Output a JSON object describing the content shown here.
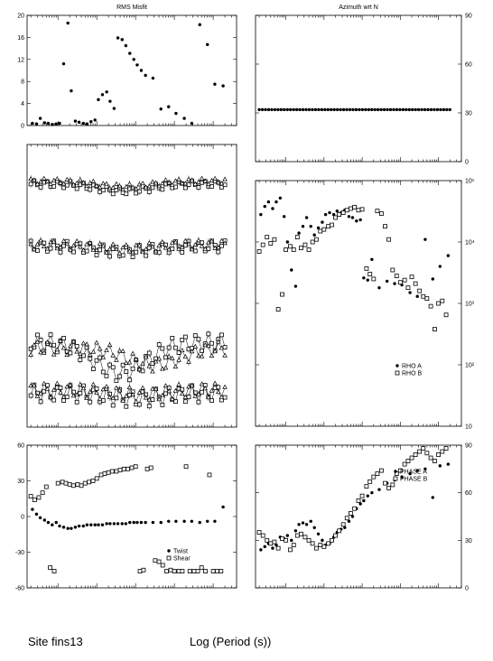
{
  "footer": {
    "site_label": "Site fins13",
    "x_label": "Log (Period (s))"
  },
  "chart_data": [
    {
      "id": "rms",
      "type": "scatter",
      "title": "RMS Misfit",
      "xscale": "log",
      "xlim": [
        0.0016,
        400
      ],
      "ylim": [
        0,
        20
      ],
      "yticks": [
        0,
        4,
        8,
        12,
        16,
        20
      ],
      "ytick_labels": [
        "0",
        "4",
        "8",
        "12",
        "16",
        "20"
      ],
      "yaxis_side": "left",
      "series": [
        {
          "marker": "dot",
          "x": [
            0.0022,
            0.0028,
            0.0035,
            0.0045,
            0.0056,
            0.0071,
            0.009,
            0.011,
            0.014,
            0.018,
            0.022,
            0.028,
            0.035,
            0.045,
            0.056,
            0.071,
            0.09,
            0.11,
            0.14,
            0.18,
            0.22,
            0.28,
            0.35,
            0.45,
            0.56,
            0.71,
            0.9,
            1.1,
            1.4,
            1.8,
            2.8,
            4.5,
            7.1,
            11,
            18,
            28,
            45,
            71,
            110,
            180
          ],
          "y": [
            0.4,
            0.3,
            1.3,
            0.5,
            0.4,
            0.2,
            0.3,
            0.4,
            11.2,
            18.6,
            6.3,
            0.8,
            0.6,
            0.4,
            0.3,
            0.7,
            1.0,
            4.7,
            5.6,
            6.1,
            4.4,
            3.1,
            15.9,
            15.6,
            14.5,
            13.1,
            12.0,
            11.0,
            10.0,
            9.1,
            8.6,
            3.0,
            3.4,
            2.2,
            1.3,
            0.4,
            18.3,
            14.7,
            7.5,
            7.2
          ]
        }
      ]
    },
    {
      "id": "azimuth",
      "type": "scatter",
      "title": "Azimuth wrt N",
      "xscale": "log",
      "xlim": [
        0.0016,
        400
      ],
      "ylim": [
        0,
        90
      ],
      "yticks": [
        0,
        30,
        60,
        90
      ],
      "ytick_labels": [
        "0",
        "30",
        "60",
        "90"
      ],
      "yaxis_side": "right",
      "series": [
        {
          "marker": "dot",
          "constant_y": 32,
          "x_range": [
            0.002,
            200
          ],
          "count": 62
        }
      ]
    },
    {
      "id": "curves",
      "type": "line",
      "xscale": "log",
      "xlim": [
        0.0016,
        400
      ],
      "ylim": [
        0,
        100
      ],
      "series": [
        {
          "marker": "open-square",
          "base": 86,
          "amp": 1.2,
          "dip_at": 0.5,
          "dip": 2.5
        },
        {
          "marker": "triangle",
          "base": 87,
          "amp": 1.0,
          "dip_at": 0.5,
          "dip": 2.0
        },
        {
          "marker": "open-square",
          "base": 64,
          "amp": 2.0,
          "dip_at": 0.5,
          "dip": 2.0
        },
        {
          "marker": "triangle",
          "base": 64.5,
          "amp": 1.6,
          "dip_at": 0.5,
          "dip": 1.5
        },
        {
          "marker": "open-square",
          "base": 30,
          "amp": 3.0,
          "dip_at": 0.4,
          "dip": 11
        },
        {
          "marker": "triangle",
          "base": 28,
          "amp": 2.5,
          "dip_at": 3.0,
          "dip": 6
        },
        {
          "marker": "open-square",
          "base": 12,
          "amp": 3.0,
          "dip_at": 1.0,
          "dip": 2
        },
        {
          "marker": "triangle",
          "base": 13,
          "amp": 2.5,
          "dip_at": 1.0,
          "dip": 1.5
        }
      ]
    },
    {
      "id": "rho",
      "type": "scatter",
      "xscale": "log",
      "yscale": "log",
      "xlim": [
        0.0016,
        400
      ],
      "ylim": [
        10,
        100000
      ],
      "yticks": [
        10,
        100,
        1000,
        10000,
        100000
      ],
      "ytick_labels": [
        "10",
        "10²",
        "10³",
        "10⁴",
        "10⁵"
      ],
      "yaxis_side": "right",
      "legend": {
        "position": "lower-right",
        "entries": [
          "RHO A",
          "RHO B"
        ]
      },
      "series": [
        {
          "name": "RHO A",
          "marker": "dot",
          "x": [
            0.0022,
            0.0028,
            0.0035,
            0.0045,
            0.0056,
            0.0071,
            0.009,
            0.011,
            0.014,
            0.018,
            0.022,
            0.028,
            0.035,
            0.045,
            0.056,
            0.071,
            0.09,
            0.11,
            0.14,
            0.18,
            0.22,
            0.28,
            0.35,
            0.45,
            0.56,
            0.71,
            0.9,
            1.1,
            1.4,
            1.8,
            2.8,
            4.5,
            7.1,
            11,
            18,
            28,
            45,
            71,
            110,
            180
          ],
          "y": [
            28000,
            38000,
            45000,
            35000,
            45000,
            52000,
            26000,
            10000,
            3500,
            1900,
            14000,
            18000,
            25000,
            18000,
            13000,
            17000,
            21000,
            28000,
            30000,
            28000,
            32000,
            30000,
            33000,
            26000,
            25000,
            22000,
            23000,
            2600,
            2400,
            5200,
            1800,
            2300,
            2100,
            2000,
            1500,
            1300,
            11000,
            2500,
            4000,
            6000
          ]
        },
        {
          "name": "RHO B",
          "marker": "open-square",
          "x": [
            0.002,
            0.0025,
            0.0032,
            0.004,
            0.005,
            0.0063,
            0.008,
            0.01,
            0.013,
            0.016,
            0.02,
            0.025,
            0.032,
            0.04,
            0.05,
            0.063,
            0.08,
            0.1,
            0.13,
            0.16,
            0.2,
            0.25,
            0.32,
            0.4,
            0.5,
            0.63,
            0.8,
            1.0,
            1.3,
            1.6,
            2,
            2.5,
            3.2,
            4,
            5,
            6.3,
            8,
            10,
            13,
            16,
            20,
            25,
            32,
            40,
            50,
            63,
            80,
            100,
            126,
            159
          ],
          "y": [
            7000,
            9000,
            12000,
            9500,
            11000,
            800,
            1400,
            7500,
            8500,
            7500,
            12000,
            8000,
            9000,
            7500,
            10000,
            11000,
            15000,
            16000,
            18000,
            19000,
            25000,
            28000,
            30000,
            33000,
            35000,
            37000,
            33000,
            34000,
            3700,
            3000,
            2500,
            32000,
            29000,
            18000,
            11000,
            3500,
            2800,
            2200,
            2400,
            1800,
            2700,
            2100,
            1600,
            1300,
            1200,
            900,
            380,
            1000,
            1100,
            650
          ]
        }
      ]
    },
    {
      "id": "twist-shear",
      "type": "scatter",
      "xscale": "log",
      "xlim": [
        0.0016,
        400
      ],
      "ylim": [
        -60,
        60
      ],
      "yticks": [
        -60,
        -30,
        0,
        30,
        60
      ],
      "ytick_labels": [
        "-60",
        "-30",
        "0",
        "30",
        "60"
      ],
      "yaxis_side": "left",
      "legend": {
        "position": "lower-right",
        "entries": [
          "Twist",
          "Shear"
        ]
      },
      "series": [
        {
          "name": "Twist",
          "marker": "dot",
          "x": [
            0.0022,
            0.0028,
            0.0035,
            0.0045,
            0.0056,
            0.0071,
            0.009,
            0.011,
            0.014,
            0.018,
            0.022,
            0.028,
            0.035,
            0.045,
            0.056,
            0.071,
            0.09,
            0.11,
            0.14,
            0.18,
            0.22,
            0.28,
            0.35,
            0.45,
            0.56,
            0.71,
            0.9,
            1.1,
            1.4,
            1.8,
            2.8,
            4.5,
            7.1,
            11,
            18,
            28,
            45,
            71,
            110,
            180
          ],
          "y": [
            6,
            2,
            -1,
            -3,
            -5,
            -7,
            -5,
            -8,
            -9,
            -10,
            -10,
            -9,
            -8,
            -8,
            -7,
            -7,
            -7,
            -7,
            -7,
            -6,
            -6,
            -6,
            -6,
            -6,
            -6,
            -5,
            -5,
            -5,
            -5,
            -5,
            -5,
            -5,
            -4,
            -4,
            -4,
            -4,
            -5,
            -4,
            -4,
            8
          ]
        },
        {
          "name": "Shear",
          "marker": "open-square",
          "x": [
            0.002,
            0.0025,
            0.0032,
            0.004,
            0.005,
            0.0063,
            0.008,
            0.01,
            0.013,
            0.016,
            0.02,
            0.025,
            0.032,
            0.04,
            0.05,
            0.063,
            0.08,
            0.1,
            0.13,
            0.16,
            0.2,
            0.25,
            0.32,
            0.4,
            0.5,
            0.63,
            0.8,
            1.0,
            1.3,
            1.6,
            2,
            2.5,
            3.2,
            4,
            5,
            6.3,
            8,
            10,
            13,
            16,
            20,
            25,
            32,
            40,
            50,
            63,
            80,
            100,
            126,
            159
          ],
          "y": [
            17,
            14,
            16,
            20,
            25,
            -43,
            -46,
            28,
            29,
            28,
            27,
            26,
            27,
            26,
            28,
            29,
            30,
            32,
            35,
            36,
            37,
            38,
            38,
            39,
            40,
            40,
            41,
            42,
            -46,
            -45,
            40,
            41,
            -37,
            -38,
            -41,
            -46,
            -45,
            -46,
            -46,
            -46,
            42,
            -46,
            -46,
            -46,
            -43,
            -46,
            35,
            -46,
            -46,
            -46
          ]
        }
      ]
    },
    {
      "id": "phase",
      "type": "scatter",
      "xscale": "log",
      "xlim": [
        0.0016,
        400
      ],
      "ylim": [
        0,
        90
      ],
      "yticks": [
        0,
        30,
        60,
        90
      ],
      "ytick_labels": [
        "0",
        "30",
        "60",
        "90"
      ],
      "yaxis_side": "right",
      "legend": {
        "position": "upper-right",
        "entries": [
          "PHASE A",
          "PHASE B"
        ]
      },
      "series": [
        {
          "name": "PHASE A",
          "marker": "dot",
          "x": [
            0.0022,
            0.0028,
            0.0035,
            0.0045,
            0.0056,
            0.0071,
            0.009,
            0.011,
            0.014,
            0.018,
            0.022,
            0.028,
            0.035,
            0.045,
            0.056,
            0.071,
            0.09,
            0.11,
            0.14,
            0.18,
            0.22,
            0.28,
            0.35,
            0.45,
            0.56,
            0.71,
            0.9,
            1.1,
            1.4,
            1.8,
            2.8,
            4.5,
            7.1,
            11,
            18,
            28,
            45,
            71,
            110,
            180
          ],
          "y": [
            24,
            26,
            28,
            25,
            27,
            32,
            31,
            33,
            30,
            36,
            40,
            41,
            40,
            42,
            38,
            34,
            30,
            27,
            28,
            32,
            35,
            37,
            38,
            42,
            45,
            50,
            53,
            55,
            58,
            60,
            62,
            66,
            68,
            70,
            72,
            74,
            75,
            57,
            77,
            78
          ]
        },
        {
          "name": "PHASE B",
          "marker": "open-square",
          "x": [
            0.002,
            0.0025,
            0.0032,
            0.004,
            0.005,
            0.0063,
            0.008,
            0.01,
            0.013,
            0.016,
            0.02,
            0.025,
            0.032,
            0.04,
            0.05,
            0.063,
            0.08,
            0.1,
            0.13,
            0.16,
            0.2,
            0.25,
            0.32,
            0.4,
            0.5,
            0.63,
            0.8,
            1.0,
            1.3,
            1.6,
            2,
            2.5,
            3.2,
            4,
            5,
            6.3,
            8,
            10,
            13,
            16,
            20,
            25,
            32,
            40,
            50,
            63,
            80,
            100,
            126,
            159
          ],
          "y": [
            35,
            33,
            30,
            28,
            29,
            25,
            31,
            30,
            24,
            27,
            33,
            34,
            32,
            30,
            28,
            25,
            27,
            26,
            28,
            30,
            33,
            36,
            40,
            44,
            47,
            50,
            55,
            58,
            64,
            67,
            70,
            72,
            74,
            66,
            63,
            65,
            72,
            74,
            78,
            80,
            82,
            84,
            86,
            88,
            85,
            82,
            80,
            84,
            86,
            88
          ]
        }
      ]
    }
  ]
}
